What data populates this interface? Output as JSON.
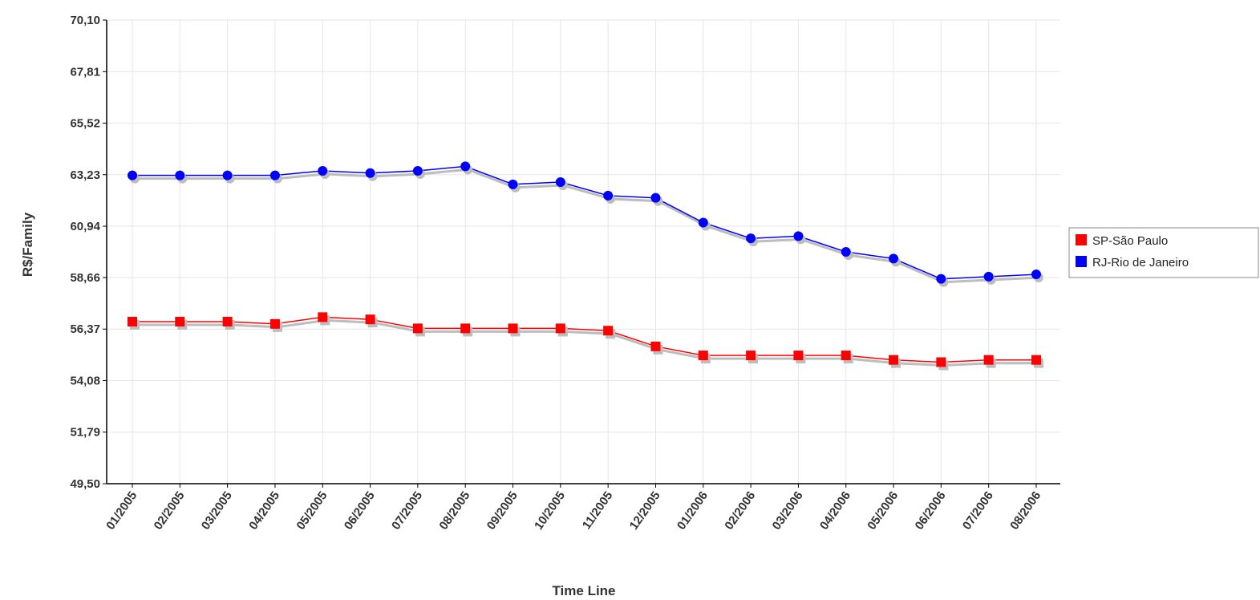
{
  "chart_data": {
    "type": "line",
    "title": "",
    "xlabel": "Time Line",
    "ylabel": "R$/Family",
    "ylim": [
      49.5,
      70.1
    ],
    "y_ticks": [
      "49,50",
      "51,79",
      "54,08",
      "56,37",
      "58,66",
      "60,94",
      "63,23",
      "65,52",
      "67,81",
      "70,10"
    ],
    "y_tick_values": [
      49.5,
      51.79,
      54.08,
      56.37,
      58.66,
      60.94,
      63.23,
      65.52,
      67.81,
      70.1
    ],
    "categories": [
      "01/2005",
      "02/2005",
      "03/2005",
      "04/2005",
      "05/2005",
      "06/2005",
      "07/2005",
      "08/2005",
      "09/2005",
      "10/2005",
      "11/2005",
      "12/2005",
      "01/2006",
      "02/2006",
      "03/2006",
      "04/2006",
      "05/2006",
      "06/2006",
      "07/2006",
      "08/2006"
    ],
    "grid": true,
    "legend_position": "right",
    "series": [
      {
        "name": "SP-São Paulo",
        "color": "#ff0000",
        "marker": "square",
        "values": [
          56.7,
          56.7,
          56.7,
          56.6,
          56.9,
          56.8,
          56.4,
          56.4,
          56.4,
          56.4,
          56.3,
          55.6,
          55.2,
          55.2,
          55.2,
          55.2,
          55.0,
          54.9,
          55.0,
          55.0
        ]
      },
      {
        "name": "RJ-Rio de Janeiro",
        "color": "#0000ff",
        "marker": "circle",
        "values": [
          63.2,
          63.2,
          63.2,
          63.2,
          63.4,
          63.3,
          63.4,
          63.6,
          62.8,
          62.9,
          62.3,
          62.2,
          61.1,
          60.4,
          60.5,
          59.8,
          59.5,
          58.6,
          58.7,
          58.8
        ]
      }
    ]
  }
}
